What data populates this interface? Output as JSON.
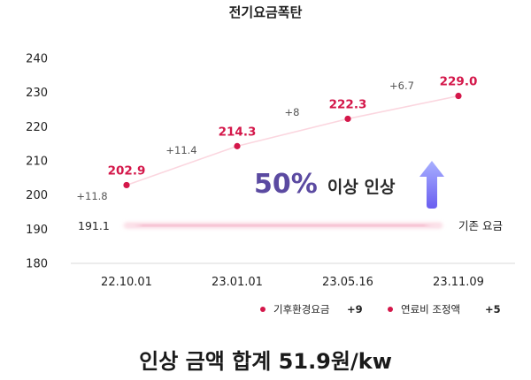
{
  "chart_data": {
    "type": "line",
    "title": "전기요금폭탄",
    "categories": [
      "22.10.01",
      "23.01.01",
      "23.05.16",
      "23.11.09"
    ],
    "values": [
      202.9,
      214.3,
      222.3,
      229.0
    ],
    "value_labels": [
      "202.9",
      "214.3",
      "222.3",
      "229.0"
    ],
    "deltas": [
      {
        "label": "+11.8",
        "from_value": 191.1,
        "to_index": 0
      },
      {
        "label": "+11.4",
        "from_index": 0,
        "to_index": 1
      },
      {
        "label": "+8",
        "from_index": 1,
        "to_index": 2
      },
      {
        "label": "+6.7",
        "from_index": 2,
        "to_index": 3
      }
    ],
    "baseline": {
      "value": 191.1,
      "value_label": "191.1",
      "label": "기존 요금"
    },
    "ylim": [
      180,
      240
    ],
    "yticks": [
      180,
      190,
      200,
      210,
      220,
      230,
      240
    ],
    "highlight": {
      "percent": "50%",
      "text": "이상 인상"
    },
    "legend": [
      {
        "label": "기후환경요금",
        "value": "+9"
      },
      {
        "label": "연료비 조정액",
        "value": "+5"
      }
    ],
    "summary": "인상 금액 합계 51.9원/kw",
    "colors": {
      "point": "#d4174a",
      "line": "#fbd6df",
      "baseline": "#f7c6d5",
      "arrow_top": "#9aa3ff",
      "arrow_bottom": "#6a5ef0",
      "accent_text": "#5b4aa1"
    },
    "icons": {
      "arrow": "arrow-up-icon"
    }
  }
}
